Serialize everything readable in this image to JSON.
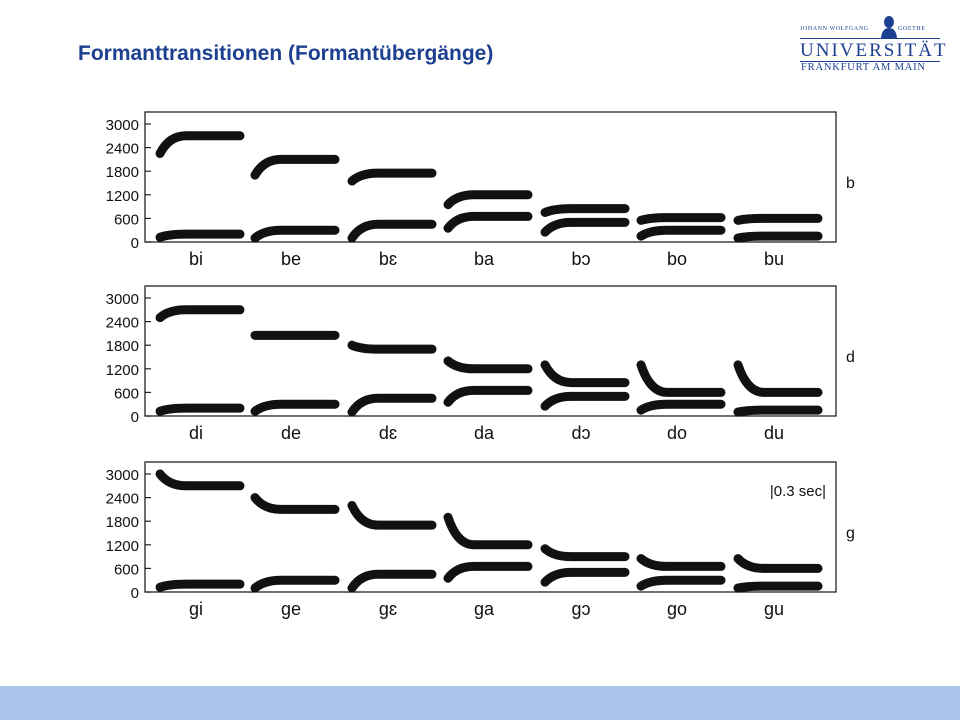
{
  "title": "Formanttransitionen (Formantübergänge)",
  "logo": {
    "top_left": "JOHANN WOLFGANG",
    "top_right": "GOETHE",
    "name": "UNIVERSITÄT",
    "city": "FRANKFURT AM MAIN"
  },
  "figure": {
    "y_ticks": [
      "3000",
      "2400",
      "1800",
      "1200",
      "600",
      "0"
    ],
    "time_scale": "|0.3 sec|",
    "panels": [
      {
        "consonant": "b",
        "syllables": [
          "bi",
          "be",
          "bɛ",
          "ba",
          "bɔ",
          "bo",
          "bu"
        ],
        "formants": [
          {
            "f2_start": 2250,
            "f2_end": 2700,
            "f1_start": 120,
            "f1_end": 200
          },
          {
            "f2_start": 1700,
            "f2_end": 2100,
            "f1_start": 100,
            "f1_end": 300
          },
          {
            "f2_start": 1550,
            "f2_end": 1750,
            "f1_start": 100,
            "f1_end": 450
          },
          {
            "f2_start": 950,
            "f2_end": 1200,
            "f1_start": 350,
            "f1_end": 650
          },
          {
            "f2_start": 750,
            "f2_end": 850,
            "f1_start": 250,
            "f1_end": 500
          },
          {
            "f2_start": 550,
            "f2_end": 620,
            "f1_start": 150,
            "f1_end": 300
          },
          {
            "f2_start": 550,
            "f2_end": 600,
            "f1_start": 100,
            "f1_end": 150
          }
        ]
      },
      {
        "consonant": "d",
        "syllables": [
          "di",
          "de",
          "dɛ",
          "da",
          "dɔ",
          "do",
          "du"
        ],
        "formants": [
          {
            "f2_start": 2500,
            "f2_end": 2700,
            "f1_start": 120,
            "f1_end": 200
          },
          {
            "f2_start": 2050,
            "f2_end": 2050,
            "f1_start": 120,
            "f1_end": 300
          },
          {
            "f2_start": 1800,
            "f2_end": 1700,
            "f1_start": 100,
            "f1_end": 450
          },
          {
            "f2_start": 1400,
            "f2_end": 1200,
            "f1_start": 350,
            "f1_end": 650
          },
          {
            "f2_start": 1300,
            "f2_end": 850,
            "f1_start": 250,
            "f1_end": 500
          },
          {
            "f2_start": 1300,
            "f2_end": 600,
            "f1_start": 150,
            "f1_end": 300
          },
          {
            "f2_start": 1300,
            "f2_end": 600,
            "f1_start": 100,
            "f1_end": 150
          }
        ]
      },
      {
        "consonant": "g",
        "syllables": [
          "gi",
          "ge",
          "gɛ",
          "ga",
          "gɔ",
          "go",
          "gu"
        ],
        "formants": [
          {
            "f2_start": 3000,
            "f2_end": 2700,
            "f1_start": 120,
            "f1_end": 200
          },
          {
            "f2_start": 2400,
            "f2_end": 2100,
            "f1_start": 100,
            "f1_end": 300
          },
          {
            "f2_start": 2200,
            "f2_end": 1700,
            "f1_start": 100,
            "f1_end": 450
          },
          {
            "f2_start": 1900,
            "f2_end": 1200,
            "f1_start": 350,
            "f1_end": 650
          },
          {
            "f2_start": 1100,
            "f2_end": 900,
            "f1_start": 250,
            "f1_end": 500
          },
          {
            "f2_start": 850,
            "f2_end": 650,
            "f1_start": 150,
            "f1_end": 300
          },
          {
            "f2_start": 850,
            "f2_end": 600,
            "f1_start": 100,
            "f1_end": 150
          }
        ]
      }
    ]
  }
}
